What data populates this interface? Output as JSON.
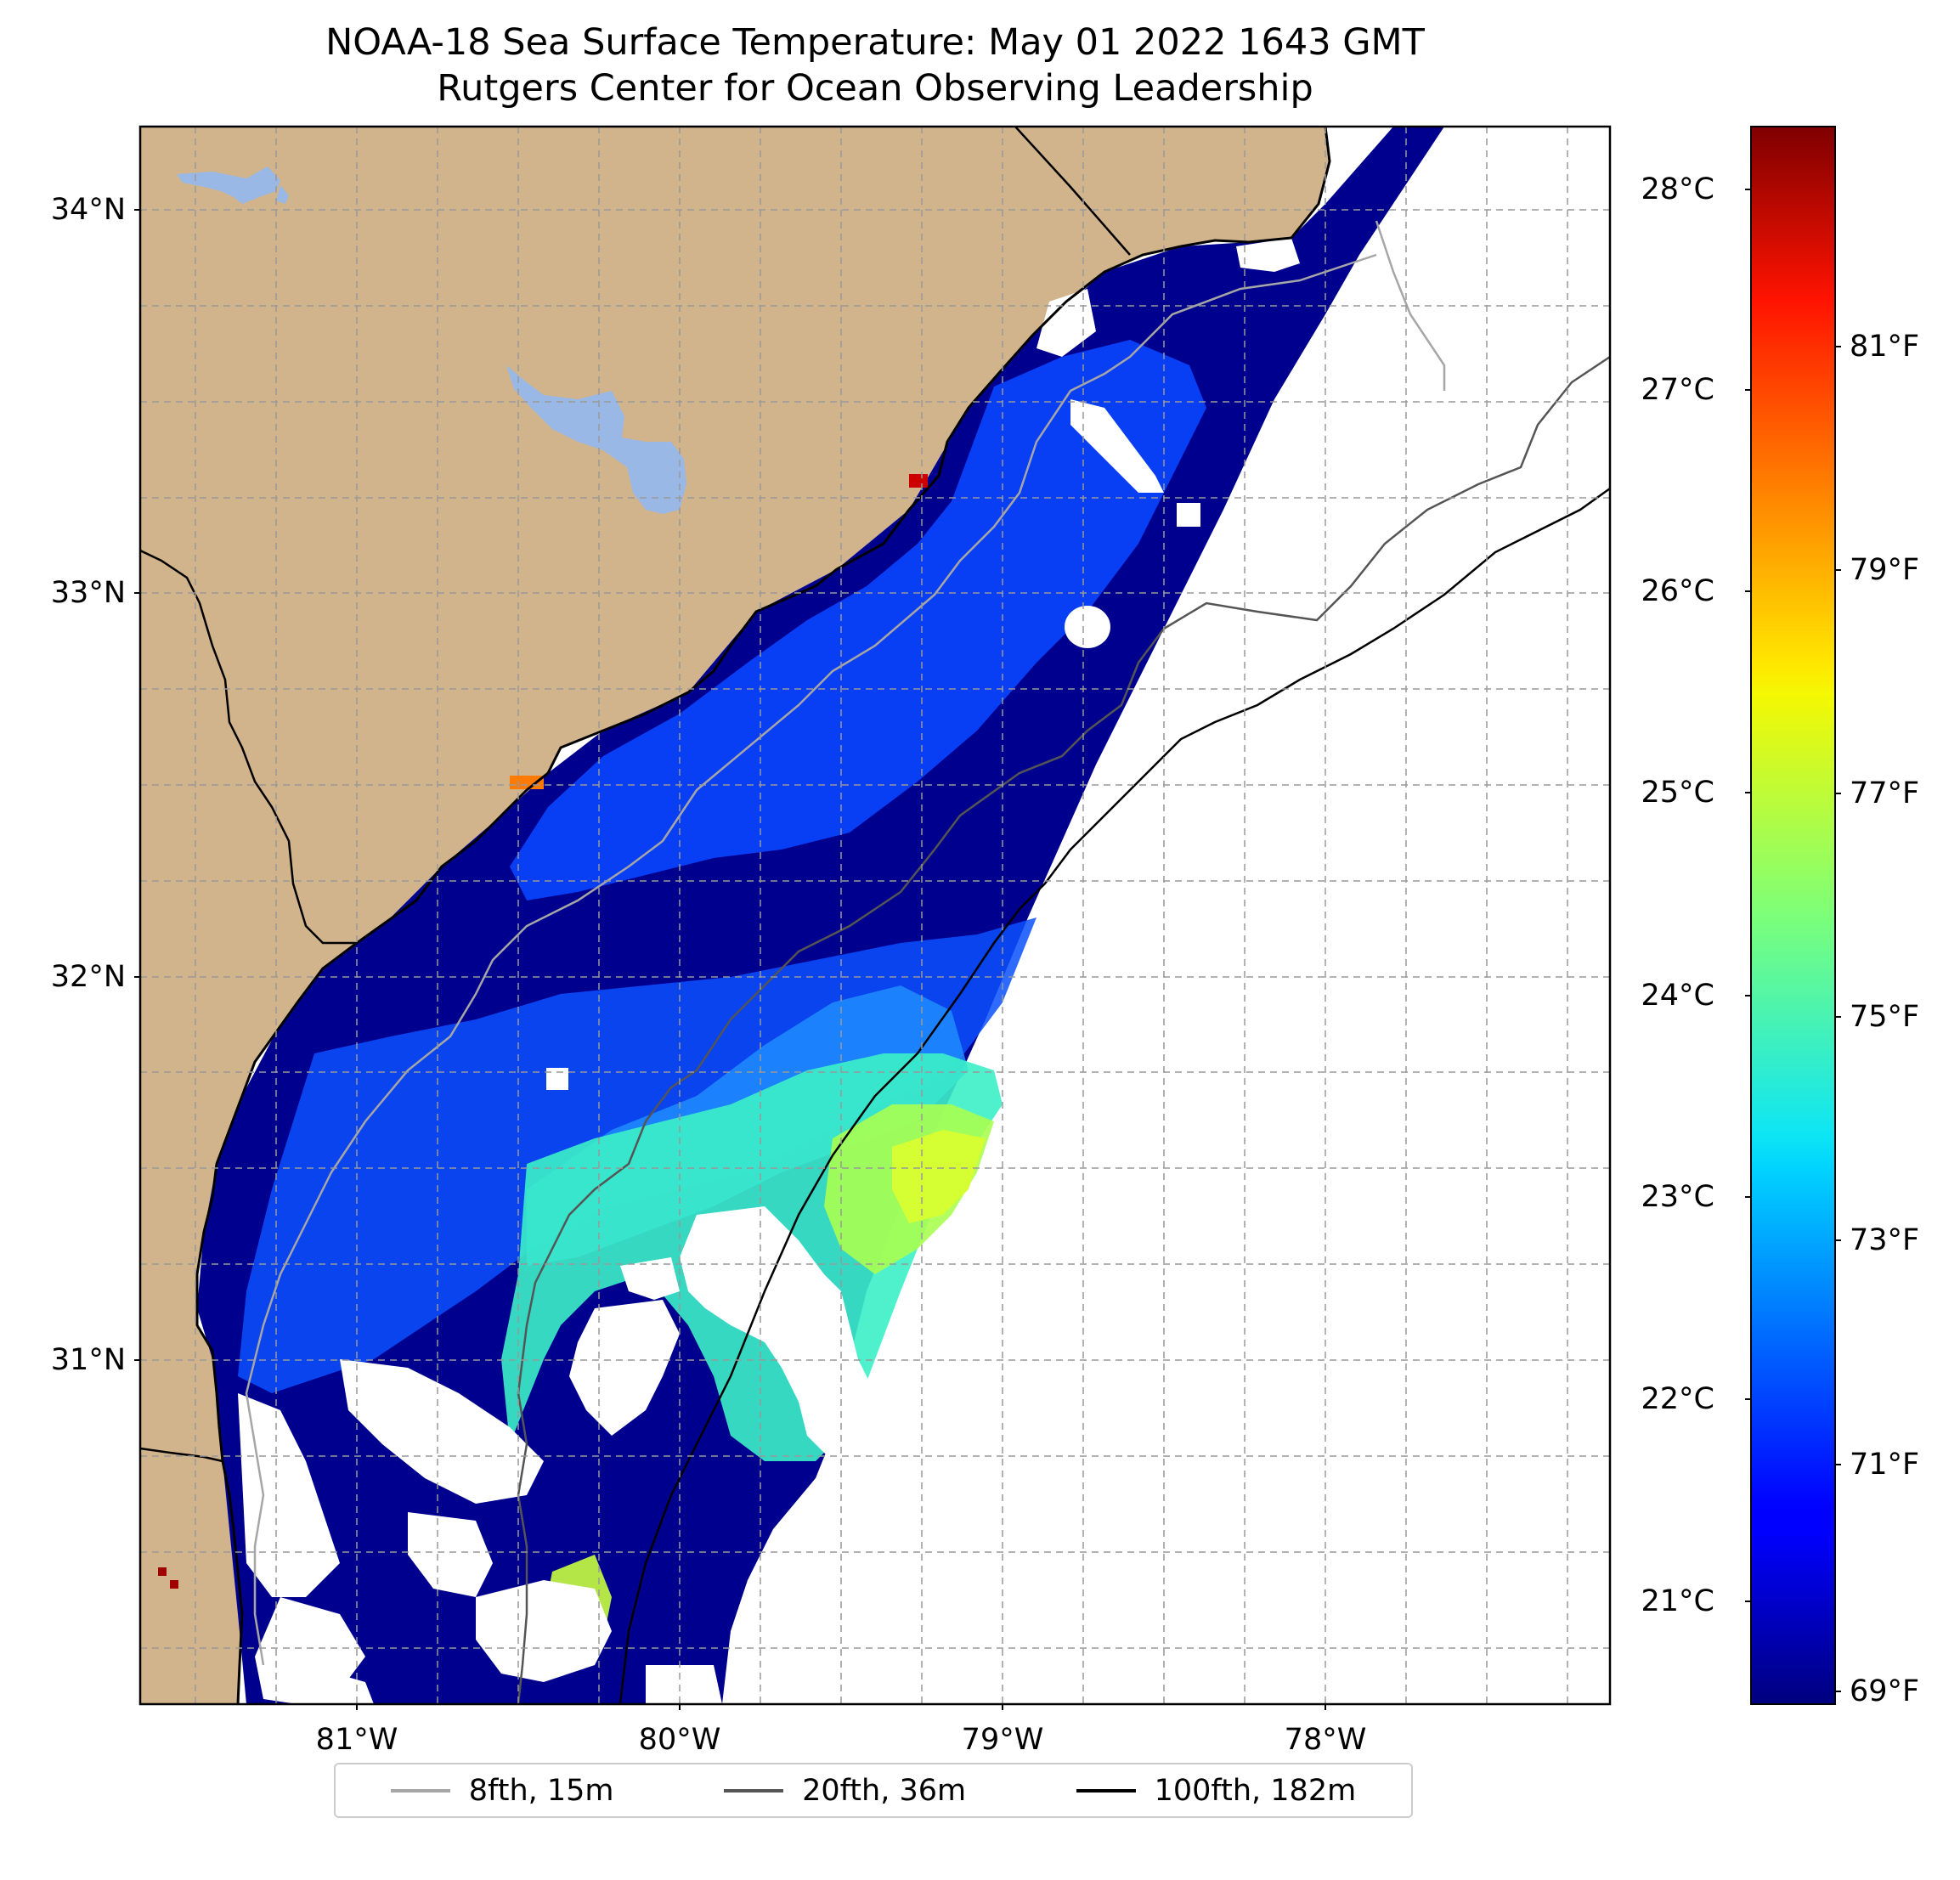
{
  "title": {
    "line1": "NOAA-18 Sea Surface Temperature: May 01 2022 1643 GMT",
    "line2": "Rutgers Center for Ocean Observing Leadership"
  },
  "map": {
    "lat_ticks": [
      "34°N",
      "33°N",
      "32°N",
      "31°N"
    ],
    "lon_ticks": [
      "81°W",
      "80°W",
      "79°W",
      "78°W"
    ],
    "land_color": "#d2b48c",
    "lake_color": "#99b8e5",
    "no_data_color": "#ffffff",
    "grid": "dashed",
    "features": [
      "land",
      "lakes",
      "coastline",
      "state-border",
      "sst-swath",
      "cloud-gaps",
      "isobaths"
    ]
  },
  "colorbar": {
    "colormap": "jet",
    "celsius_ticks": [
      "28°C",
      "27°C",
      "26°C",
      "25°C",
      "24°C",
      "23°C",
      "22°C",
      "21°C"
    ],
    "fahrenheit_ticks": [
      "81°F",
      "79°F",
      "77°F",
      "75°F",
      "73°F",
      "71°F",
      "69°F"
    ]
  },
  "legend": {
    "items": [
      {
        "label": "8fth, 15m",
        "color": "#a6a6a6"
      },
      {
        "label": "20fth, 36m",
        "color": "#555555"
      },
      {
        "label": "100fth, 182m",
        "color": "#000000"
      }
    ]
  }
}
